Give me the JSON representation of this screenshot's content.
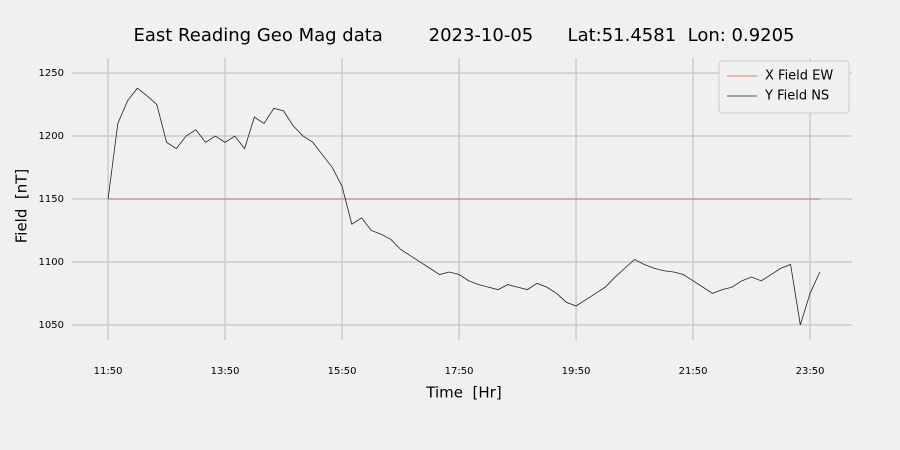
{
  "chart_data": {
    "type": "line",
    "title": "East Reading Geo Mag data        2023-10-05      Lat:51.4581  Lon: 0.9205",
    "x_label": "Time  [Hr]",
    "y_label": "Field  [nT]",
    "x": [
      710,
      720,
      730,
      740,
      750,
      760,
      770,
      780,
      790,
      800,
      810,
      820,
      830,
      840,
      850,
      860,
      870,
      880,
      890,
      900,
      910,
      920,
      930,
      940,
      950,
      960,
      970,
      980,
      990,
      1000,
      1010,
      1020,
      1030,
      1040,
      1050,
      1060,
      1070,
      1080,
      1090,
      1100,
      1110,
      1120,
      1130,
      1140,
      1150,
      1160,
      1170,
      1180,
      1190,
      1200,
      1210,
      1220,
      1230,
      1240,
      1250,
      1260,
      1270,
      1280,
      1290,
      1300,
      1310,
      1320,
      1330,
      1340,
      1350,
      1360,
      1370,
      1380,
      1390,
      1400,
      1410,
      1420,
      1430,
      1440
    ],
    "series": [
      {
        "name": "X Field EW",
        "color": "#d9534f",
        "values": [
          1150,
          1150,
          1150,
          1150,
          1150,
          1150,
          1150,
          1150,
          1150,
          1150,
          1150,
          1150,
          1150,
          1150,
          1150,
          1150,
          1150,
          1150,
          1150,
          1150,
          1150,
          1150,
          1150,
          1150,
          1150,
          1150,
          1150,
          1150,
          1150,
          1150,
          1150,
          1150,
          1150,
          1150,
          1150,
          1150,
          1150,
          1150,
          1150,
          1150,
          1150,
          1150,
          1150,
          1150,
          1150,
          1150,
          1150,
          1150,
          1150,
          1150,
          1150,
          1150,
          1150,
          1150,
          1150,
          1150,
          1150,
          1150,
          1150,
          1150,
          1150,
          1150,
          1150,
          1150,
          1150,
          1150,
          1150,
          1150,
          1150,
          1150,
          1150,
          1150,
          1150,
          1150
        ]
      },
      {
        "name": "Y Field NS",
        "color": "#222222",
        "values": [
          1150,
          1210,
          1228,
          1238,
          1232,
          1225,
          1195,
          1190,
          1200,
          1205,
          1195,
          1200,
          1195,
          1200,
          1190,
          1215,
          1210,
          1222,
          1220,
          1208,
          1200,
          1195,
          1185,
          1175,
          1160,
          1130,
          1135,
          1125,
          1122,
          1118,
          1110,
          1105,
          1100,
          1095,
          1090,
          1092,
          1090,
          1085,
          1082,
          1080,
          1078,
          1082,
          1080,
          1078,
          1083,
          1080,
          1075,
          1068,
          1065,
          1070,
          1075,
          1080,
          1088,
          1095,
          1102,
          1098,
          1095,
          1093,
          1092,
          1090,
          1085,
          1080,
          1075,
          1078,
          1080,
          1085,
          1088,
          1085,
          1090,
          1095,
          1098,
          1050,
          1075,
          1092
        ]
      }
    ],
    "xlim": [
      673,
      1473
    ],
    "xticks": [
      {
        "value": 710,
        "label": "11:50"
      },
      {
        "value": 830,
        "label": "13:50"
      },
      {
        "value": 950,
        "label": "15:50"
      },
      {
        "value": 1070,
        "label": "17:50"
      },
      {
        "value": 1190,
        "label": "19:50"
      },
      {
        "value": 1310,
        "label": "21:50"
      },
      {
        "value": 1430,
        "label": "23:50"
      }
    ],
    "ylim": [
      1038,
      1262
    ],
    "yticks": [
      1050,
      1100,
      1150,
      1200,
      1250
    ],
    "grid": true,
    "legend": "upper right"
  }
}
